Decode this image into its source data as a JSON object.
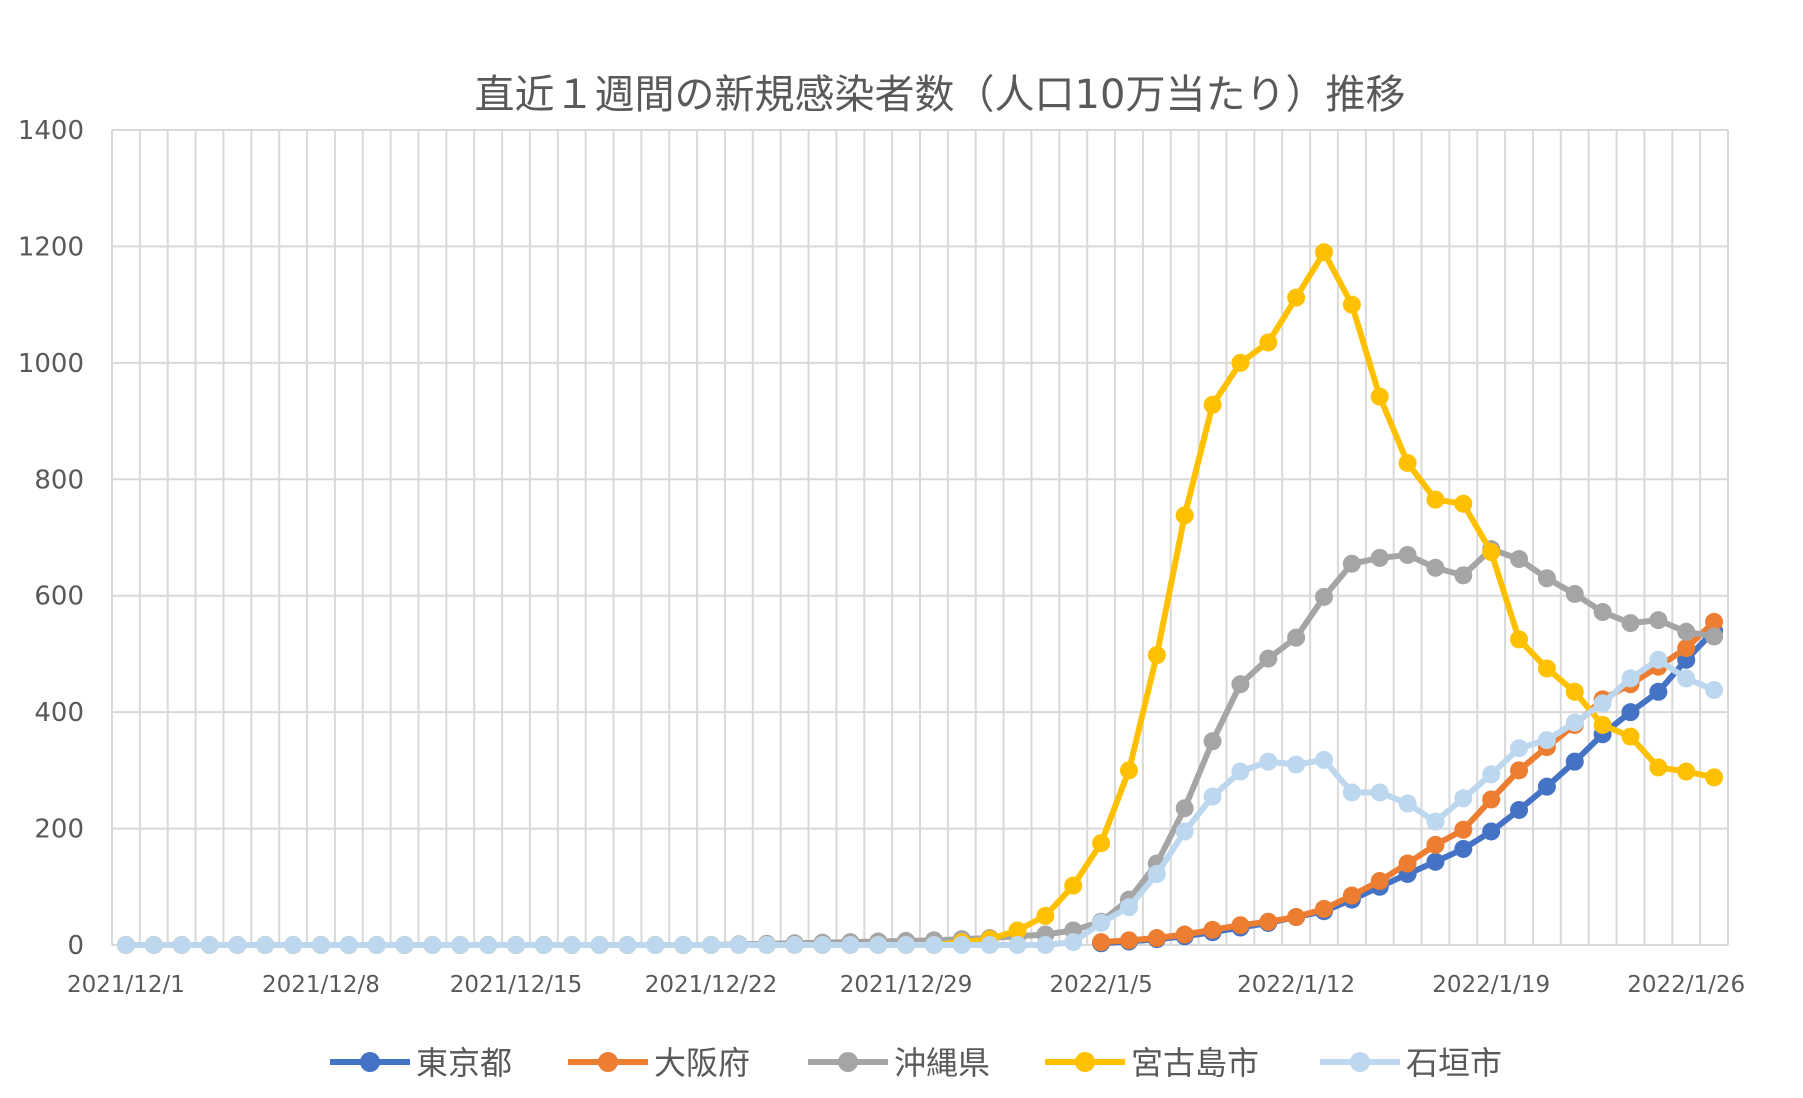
{
  "chart_data": {
    "type": "line",
    "title": "直近１週間の新規感染者数（人口10万当たり）推移",
    "xlabel": "",
    "ylabel": "",
    "ylim": [
      0,
      1400
    ],
    "yticks": [
      "0",
      "200",
      "400",
      "600",
      "800",
      "1000",
      "1200",
      "1400"
    ],
    "xtick_labels": [
      "2021/12/1",
      "2021/12/8",
      "2021/12/15",
      "2021/12/22",
      "2021/12/29",
      "2022/1/5",
      "2022/1/12",
      "2022/1/19",
      "2022/1/26"
    ],
    "x_range": [
      "2021/12/1",
      "2022/1/27"
    ],
    "grid": "on",
    "legend_position": "bottom",
    "series": [
      {
        "name": "東京都",
        "color": "#4472C4",
        "dates": [
          "2022/1/5",
          "2022/1/6",
          "2022/1/7",
          "2022/1/8",
          "2022/1/9",
          "2022/1/10",
          "2022/1/11",
          "2022/1/12",
          "2022/1/13",
          "2022/1/14",
          "2022/1/15",
          "2022/1/16",
          "2022/1/17",
          "2022/1/18",
          "2022/1/19",
          "2022/1/20",
          "2022/1/21",
          "2022/1/22",
          "2022/1/23",
          "2022/1/24",
          "2022/1/25",
          "2022/1/26",
          "2022/1/27"
        ],
        "values": [
          3,
          6,
          10,
          15,
          22,
          30,
          38,
          48,
          58,
          78,
          100,
          122,
          143,
          165,
          195,
          232,
          272,
          315,
          362,
          400,
          435,
          490,
          540
        ]
      },
      {
        "name": "大阪府",
        "color": "#ED7D31",
        "dates": [
          "2022/1/5",
          "2022/1/6",
          "2022/1/7",
          "2022/1/8",
          "2022/1/9",
          "2022/1/10",
          "2022/1/11",
          "2022/1/12",
          "2022/1/13",
          "2022/1/14",
          "2022/1/15",
          "2022/1/16",
          "2022/1/17",
          "2022/1/18",
          "2022/1/19",
          "2022/1/20",
          "2022/1/21",
          "2022/1/22",
          "2022/1/23",
          "2022/1/24",
          "2022/1/25",
          "2022/1/26",
          "2022/1/27"
        ],
        "values": [
          5,
          8,
          12,
          18,
          26,
          34,
          40,
          48,
          62,
          85,
          110,
          140,
          172,
          198,
          250,
          300,
          340,
          378,
          422,
          448,
          478,
          510,
          555
        ]
      },
      {
        "name": "沖縄県",
        "color": "#A5A5A5",
        "dates": [
          "2021/12/1",
          "2021/12/2",
          "2021/12/3",
          "2021/12/4",
          "2021/12/5",
          "2021/12/6",
          "2021/12/7",
          "2021/12/8",
          "2021/12/9",
          "2021/12/10",
          "2021/12/11",
          "2021/12/12",
          "2021/12/13",
          "2021/12/14",
          "2021/12/15",
          "2021/12/16",
          "2021/12/17",
          "2021/12/18",
          "2021/12/19",
          "2021/12/20",
          "2021/12/21",
          "2021/12/22",
          "2021/12/23",
          "2021/12/24",
          "2021/12/25",
          "2021/12/26",
          "2021/12/27",
          "2021/12/28",
          "2021/12/29",
          "2021/12/30",
          "2021/12/31",
          "2022/1/1",
          "2022/1/2",
          "2022/1/3",
          "2022/1/4",
          "2022/1/5",
          "2022/1/6",
          "2022/1/7",
          "2022/1/8",
          "2022/1/9",
          "2022/1/10",
          "2022/1/11",
          "2022/1/12",
          "2022/1/13",
          "2022/1/14",
          "2022/1/15",
          "2022/1/16",
          "2022/1/17",
          "2022/1/18",
          "2022/1/19",
          "2022/1/20",
          "2022/1/21",
          "2022/1/22",
          "2022/1/23",
          "2022/1/24",
          "2022/1/25",
          "2022/1/26",
          "2022/1/27"
        ],
        "values": [
          0,
          0,
          0,
          0,
          0,
          0,
          0,
          0,
          0,
          0,
          0,
          0,
          0,
          0,
          0,
          0,
          0,
          0,
          0,
          0,
          0,
          0,
          1,
          2,
          3,
          4,
          5,
          6,
          7,
          8,
          10,
          12,
          15,
          18,
          25,
          40,
          78,
          140,
          235,
          350,
          448,
          492,
          528,
          598,
          655,
          665,
          670,
          648,
          635,
          680,
          663,
          630,
          603,
          572,
          553,
          558,
          538,
          530
        ]
      },
      {
        "name": "宮古島市",
        "color": "#FFC000",
        "dates": [
          "2021/12/1",
          "2021/12/2",
          "2021/12/3",
          "2021/12/4",
          "2021/12/5",
          "2021/12/6",
          "2021/12/7",
          "2021/12/8",
          "2021/12/9",
          "2021/12/10",
          "2021/12/11",
          "2021/12/12",
          "2021/12/13",
          "2021/12/14",
          "2021/12/15",
          "2021/12/16",
          "2021/12/17",
          "2021/12/18",
          "2021/12/19",
          "2021/12/20",
          "2021/12/21",
          "2021/12/22",
          "2021/12/23",
          "2021/12/24",
          "2021/12/25",
          "2021/12/26",
          "2021/12/27",
          "2021/12/28",
          "2021/12/29",
          "2021/12/30",
          "2021/12/31",
          "2022/1/1",
          "2022/1/2",
          "2022/1/3",
          "2022/1/4",
          "2022/1/5",
          "2022/1/6",
          "2022/1/7",
          "2022/1/8",
          "2022/1/9",
          "2022/1/10",
          "2022/1/11",
          "2022/1/12",
          "2022/1/13",
          "2022/1/14",
          "2022/1/15",
          "2022/1/16",
          "2022/1/17",
          "2022/1/18",
          "2022/1/19",
          "2022/1/20",
          "2022/1/21",
          "2022/1/22",
          "2022/1/23",
          "2022/1/24",
          "2022/1/25",
          "2022/1/26",
          "2022/1/27"
        ],
        "values": [
          0,
          0,
          0,
          0,
          0,
          0,
          0,
          0,
          0,
          0,
          0,
          0,
          0,
          0,
          0,
          0,
          0,
          0,
          0,
          0,
          0,
          0,
          0,
          0,
          0,
          0,
          0,
          0,
          0,
          0,
          5,
          10,
          25,
          50,
          102,
          175,
          300,
          498,
          738,
          928,
          1000,
          1035,
          1112,
          1190,
          1100,
          942,
          828,
          765,
          758,
          675,
          525,
          475,
          435,
          378,
          358,
          305,
          298,
          288
        ]
      },
      {
        "name": "石垣市",
        "color": "#BDD7EE",
        "dates": [
          "2021/12/1",
          "2021/12/2",
          "2021/12/3",
          "2021/12/4",
          "2021/12/5",
          "2021/12/6",
          "2021/12/7",
          "2021/12/8",
          "2021/12/9",
          "2021/12/10",
          "2021/12/11",
          "2021/12/12",
          "2021/12/13",
          "2021/12/14",
          "2021/12/15",
          "2021/12/16",
          "2021/12/17",
          "2021/12/18",
          "2021/12/19",
          "2021/12/20",
          "2021/12/21",
          "2021/12/22",
          "2021/12/23",
          "2021/12/24",
          "2021/12/25",
          "2021/12/26",
          "2021/12/27",
          "2021/12/28",
          "2021/12/29",
          "2021/12/30",
          "2021/12/31",
          "2022/1/1",
          "2022/1/2",
          "2022/1/3",
          "2022/1/4",
          "2022/1/5",
          "2022/1/6",
          "2022/1/7",
          "2022/1/8",
          "2022/1/9",
          "2022/1/10",
          "2022/1/11",
          "2022/1/12",
          "2022/1/13",
          "2022/1/14",
          "2022/1/15",
          "2022/1/16",
          "2022/1/17",
          "2022/1/18",
          "2022/1/19",
          "2022/1/20",
          "2022/1/21",
          "2022/1/22",
          "2022/1/23",
          "2022/1/24",
          "2022/1/25",
          "2022/1/26",
          "2022/1/27"
        ],
        "values": [
          0,
          0,
          0,
          0,
          0,
          0,
          0,
          0,
          0,
          0,
          0,
          0,
          0,
          0,
          0,
          0,
          0,
          0,
          0,
          0,
          0,
          0,
          0,
          0,
          0,
          0,
          0,
          0,
          0,
          0,
          0,
          0,
          0,
          0,
          5,
          38,
          65,
          122,
          195,
          255,
          298,
          315,
          310,
          318,
          262,
          262,
          243,
          212,
          252,
          293,
          338,
          352,
          382,
          415,
          458,
          490,
          458,
          438
        ]
      }
    ]
  }
}
